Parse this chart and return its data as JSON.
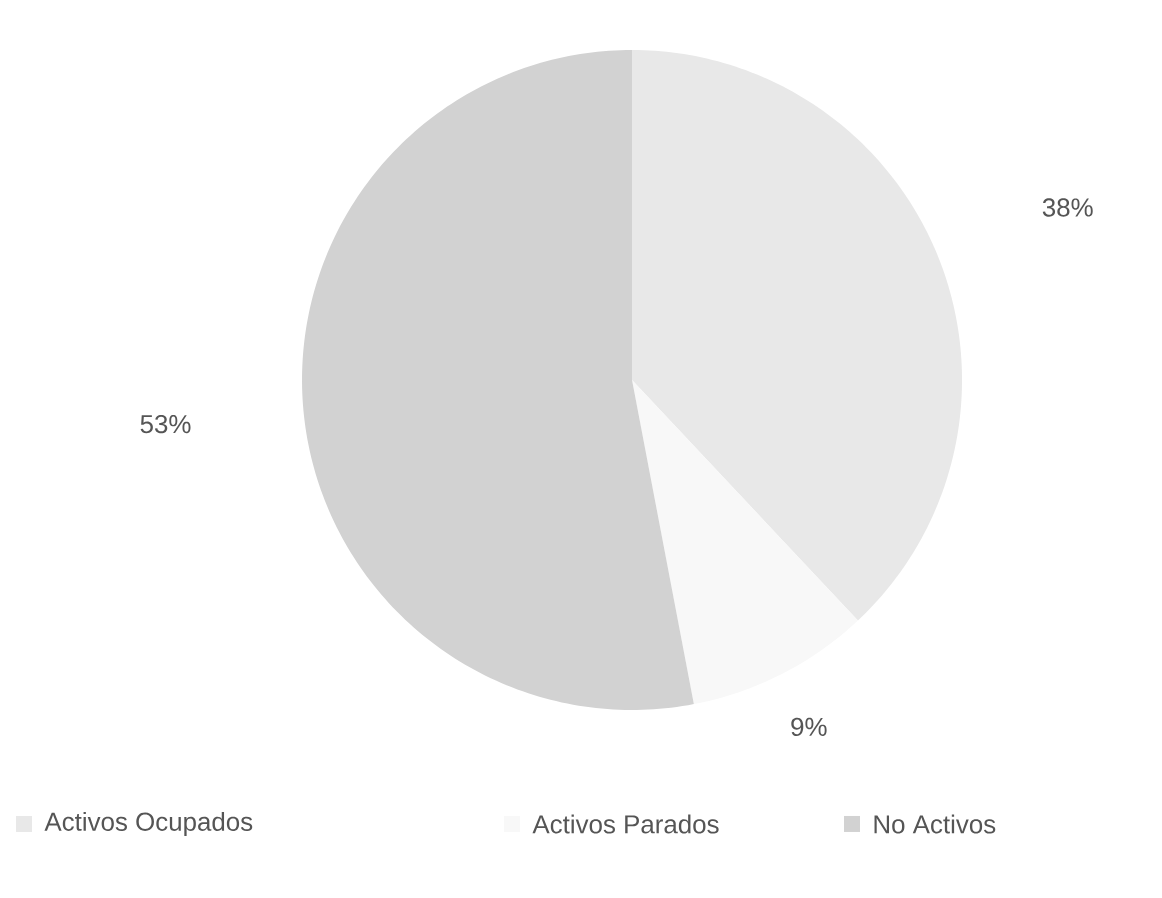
{
  "chart_data": {
    "type": "pie",
    "categories": [
      "Activos Ocupados",
      "Activos Parados",
      "No Activos"
    ],
    "values": [
      38,
      9,
      53
    ],
    "colors": [
      "#e8e8e8",
      "#f8f8f8",
      "#d2d2d2"
    ],
    "value_labels": [
      "38%",
      "9%",
      "53%"
    ],
    "legend": "bottom"
  }
}
